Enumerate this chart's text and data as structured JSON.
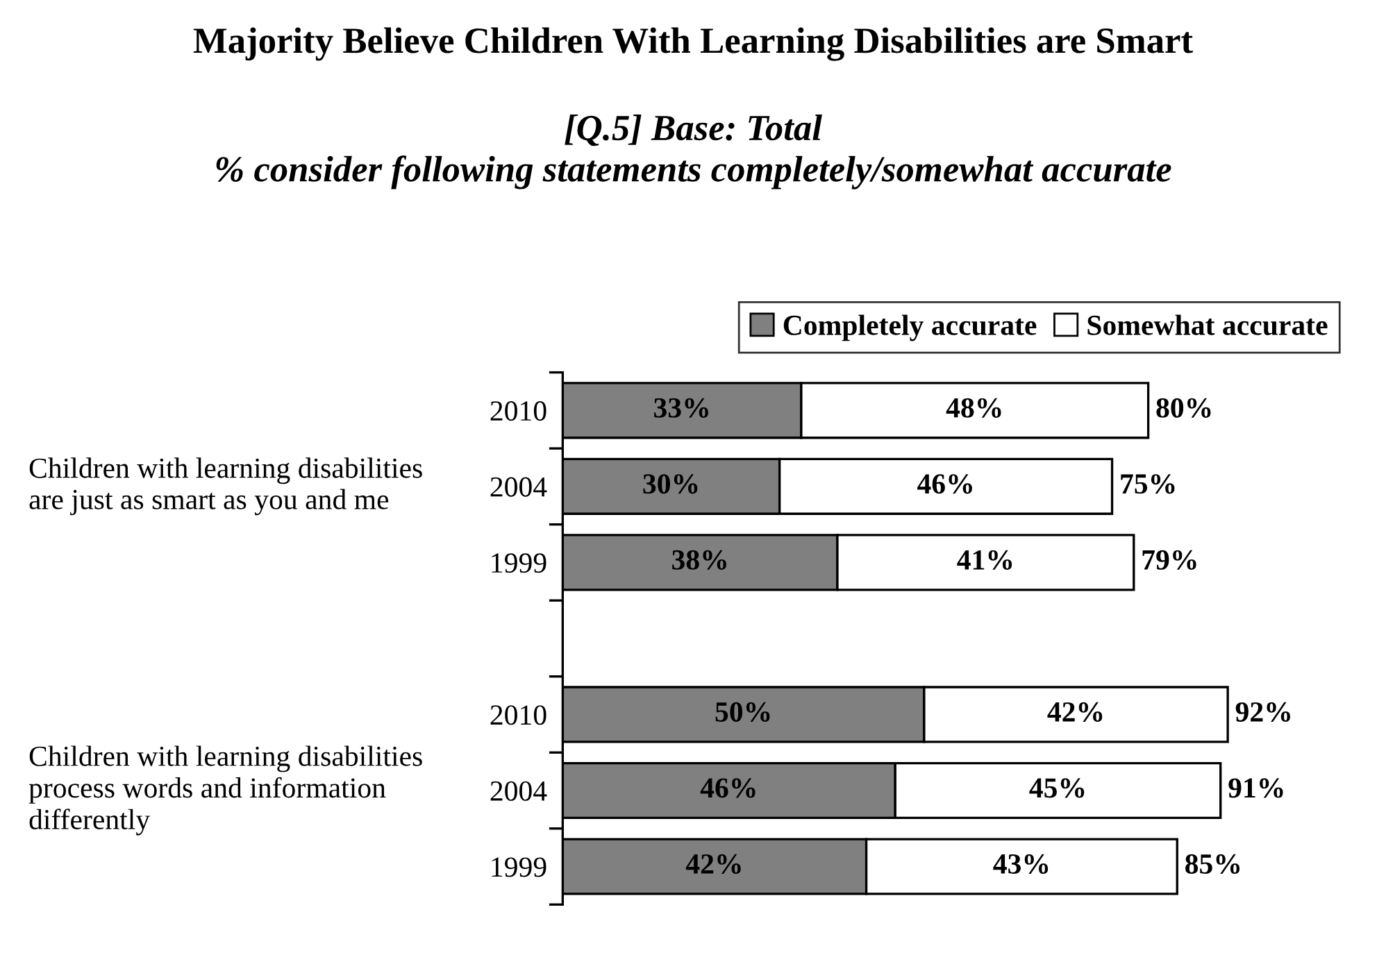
{
  "chart_data": {
    "type": "bar",
    "orientation": "horizontal",
    "stacked": true,
    "title": "Majority Believe Children With Learning Disabilities are Smart",
    "subtitle": "[Q.5] Base: Total\n% consider following statements completely/somewhat accurate",
    "categories": [
      "2010",
      "2004",
      "1999",
      null,
      "2010",
      "2004",
      "1999"
    ],
    "series": [
      {
        "name": "Completely accurate",
        "color": "#808080",
        "values": [
          33,
          30,
          38,
          null,
          50,
          46,
          42
        ],
        "value_labels": [
          "33%",
          "30%",
          "38%",
          null,
          "50%",
          "46%",
          "42%"
        ]
      },
      {
        "name": "Somewhat accurate",
        "color": "#ffffff",
        "values": [
          48,
          46,
          41,
          null,
          42,
          45,
          43
        ],
        "value_labels": [
          "48%",
          "46%",
          "41%",
          null,
          "42%",
          "45%",
          "43%"
        ]
      }
    ],
    "totals": [
      "80%",
      "75%",
      "79%",
      null,
      "92%",
      "91%",
      "85%"
    ],
    "annotations": [
      "Children with learning disabilities are just as smart as you and me",
      "Children with learning disabilities process words and information differently"
    ],
    "tick_labels": "y",
    "grid": false,
    "legend": "top right"
  }
}
